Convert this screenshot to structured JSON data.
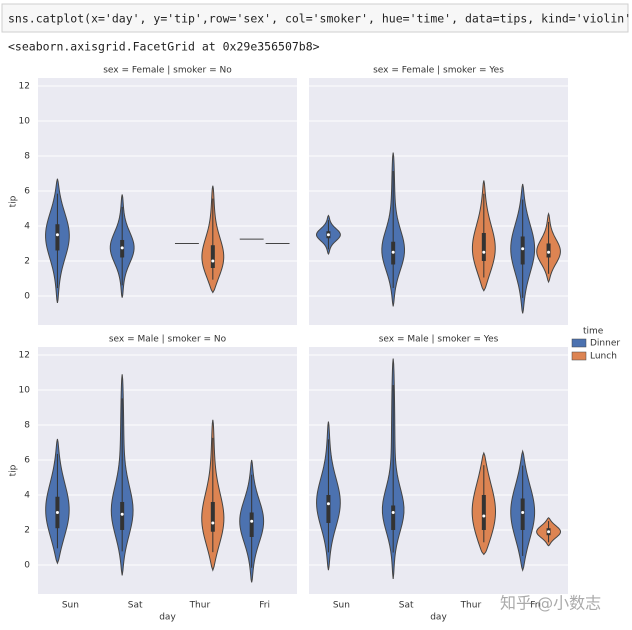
{
  "code": "sns.catplot(x='day', y='tip',row='sex', col='smoker', hue='time', data=tips, kind='violin')",
  "output": "<seaborn.axisgrid.FacetGrid at 0x29e356507b8>",
  "legend_title": "time",
  "watermark": "知乎 @小数志",
  "chart_data": [
    {
      "type": "violin",
      "title": "sex = Female | smoker = No",
      "ylabel": "tip",
      "categories": [
        "Sun",
        "Sat",
        "Thur",
        "Fri"
      ],
      "ylim": [
        -1.66,
        12.46
      ],
      "yticks": [
        0,
        2,
        4,
        6,
        8,
        10,
        12
      ],
      "grid": true,
      "series": [
        {
          "name": "Dinner",
          "color": "#4c72b0",
          "min": [
            -0.4,
            -0.1,
            3,
            3.25
          ],
          "q1": [
            2.6,
            2.2,
            3,
            3.25
          ],
          "median": [
            3.5,
            2.75,
            3,
            3.25
          ],
          "q3": [
            4.1,
            3.2,
            3,
            3.25
          ],
          "max": [
            6.7,
            5.8,
            3,
            3.25
          ]
        },
        {
          "name": "Lunch",
          "color": "#dd8452",
          "min": [
            null,
            null,
            0.2,
            3
          ],
          "q1": [
            null,
            null,
            1.6,
            3
          ],
          "median": [
            null,
            null,
            2.0,
            3
          ],
          "q3": [
            null,
            null,
            2.9,
            3
          ],
          "max": [
            null,
            null,
            6.3,
            3
          ]
        }
      ]
    },
    {
      "type": "violin",
      "title": "sex = Female | smoker = Yes",
      "categories": [
        "Sun",
        "Sat",
        "Thur",
        "Fri"
      ],
      "ylim": [
        -1.66,
        12.46
      ],
      "yticks": [
        0,
        2,
        4,
        6,
        8,
        10,
        12
      ],
      "grid": true,
      "series": [
        {
          "name": "Dinner",
          "color": "#4c72b0",
          "min": [
            2.4,
            -0.6,
            null,
            -1.0
          ],
          "q1": [
            3.3,
            1.8,
            null,
            1.8
          ],
          "median": [
            3.5,
            2.5,
            null,
            2.7
          ],
          "q3": [
            3.7,
            3.1,
            null,
            3.4
          ],
          "max": [
            4.6,
            8.2,
            null,
            6.4
          ]
        },
        {
          "name": "Lunch",
          "color": "#dd8452",
          "min": [
            null,
            null,
            0.3,
            0.8
          ],
          "q1": [
            null,
            null,
            2.0,
            2.2
          ],
          "median": [
            null,
            null,
            2.5,
            2.5
          ],
          "q3": [
            null,
            null,
            3.6,
            3.0
          ],
          "max": [
            null,
            null,
            6.6,
            4.7
          ]
        }
      ]
    },
    {
      "type": "violin",
      "title": "sex = Male | smoker = No",
      "ylabel": "tip",
      "xlabel": "day",
      "categories": [
        "Sun",
        "Sat",
        "Thur",
        "Fri"
      ],
      "ylim": [
        -1.66,
        12.46
      ],
      "yticks": [
        0,
        2,
        4,
        6,
        8,
        10,
        12
      ],
      "grid": true,
      "series": [
        {
          "name": "Dinner",
          "color": "#4c72b0",
          "min": [
            0.1,
            -0.6,
            null,
            -1.0
          ],
          "q1": [
            2.1,
            2.0,
            null,
            1.6
          ],
          "median": [
            3.0,
            2.9,
            null,
            2.5
          ],
          "q3": [
            3.9,
            3.6,
            null,
            3.0
          ],
          "max": [
            7.2,
            10.9,
            null,
            6.0
          ]
        },
        {
          "name": "Lunch",
          "color": "#dd8452",
          "min": [
            null,
            null,
            -0.3,
            null
          ],
          "q1": [
            null,
            null,
            1.9,
            null
          ],
          "median": [
            null,
            null,
            2.4,
            null
          ],
          "q3": [
            null,
            null,
            3.6,
            null
          ],
          "max": [
            null,
            null,
            8.3,
            null
          ]
        }
      ]
    },
    {
      "type": "violin",
      "title": "sex = Male | smoker = Yes",
      "xlabel": "day",
      "categories": [
        "Sun",
        "Sat",
        "Thur",
        "Fri"
      ],
      "ylim": [
        -1.66,
        12.46
      ],
      "yticks": [
        0,
        2,
        4,
        6,
        8,
        10,
        12
      ],
      "grid": true,
      "series": [
        {
          "name": "Dinner",
          "color": "#4c72b0",
          "min": [
            -0.3,
            -0.8,
            null,
            -0.3
          ],
          "q1": [
            2.4,
            2.0,
            null,
            2.0
          ],
          "median": [
            3.5,
            3.0,
            null,
            3.0
          ],
          "q3": [
            4.0,
            3.4,
            null,
            3.8
          ],
          "max": [
            8.2,
            11.8,
            null,
            6.5
          ]
        },
        {
          "name": "Lunch",
          "color": "#dd8452",
          "min": [
            null,
            null,
            0.6,
            1.1
          ],
          "q1": [
            null,
            null,
            2.0,
            1.7
          ],
          "median": [
            null,
            null,
            2.8,
            1.9
          ],
          "q3": [
            null,
            null,
            4.0,
            2.1
          ],
          "max": [
            null,
            null,
            6.4,
            2.7
          ]
        }
      ]
    }
  ]
}
